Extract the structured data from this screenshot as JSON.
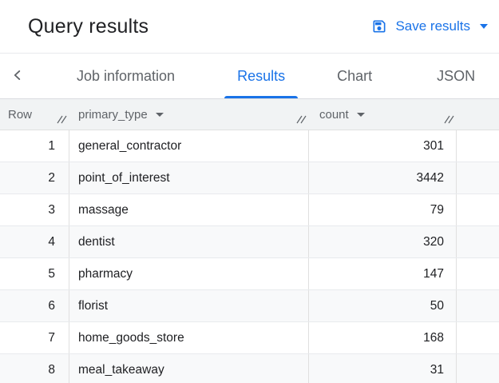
{
  "colors": {
    "accent_blue": "#1a73e8",
    "title_text": "#202124",
    "secondary_text": "#5f6368",
    "table_header_bg": "#f1f3f4",
    "row_alt_bg": "#f8f9fa",
    "border_gray": "#e0e0e0"
  },
  "header": {
    "title": "Query results",
    "save_button": {
      "label": "Save results",
      "icon": "save-icon",
      "has_dropdown": true
    }
  },
  "tab_bar": {
    "back_icon": "chevron-left-icon",
    "tabs": [
      {
        "label": "Job information",
        "active": false
      },
      {
        "label": "Results",
        "active": true
      },
      {
        "label": "Chart",
        "active": false
      },
      {
        "label": "JSON",
        "active": false
      }
    ]
  },
  "table": {
    "columns": [
      {
        "label": "Row",
        "has_sort_dropdown": false,
        "has_resize_handle": true
      },
      {
        "label": "primary_type",
        "has_sort_dropdown": true,
        "has_resize_handle": true
      },
      {
        "label": "count",
        "has_sort_dropdown": true,
        "has_resize_handle": true
      }
    ],
    "rows": [
      {
        "row": 1,
        "primary_type": "general_contractor",
        "count": 301
      },
      {
        "row": 2,
        "primary_type": "point_of_interest",
        "count": 3442
      },
      {
        "row": 3,
        "primary_type": "massage",
        "count": 79
      },
      {
        "row": 4,
        "primary_type": "dentist",
        "count": 320
      },
      {
        "row": 5,
        "primary_type": "pharmacy",
        "count": 147
      },
      {
        "row": 6,
        "primary_type": "florist",
        "count": 50
      },
      {
        "row": 7,
        "primary_type": "home_goods_store",
        "count": 168
      },
      {
        "row": 8,
        "primary_type": "meal_takeaway",
        "count": 31
      }
    ]
  }
}
